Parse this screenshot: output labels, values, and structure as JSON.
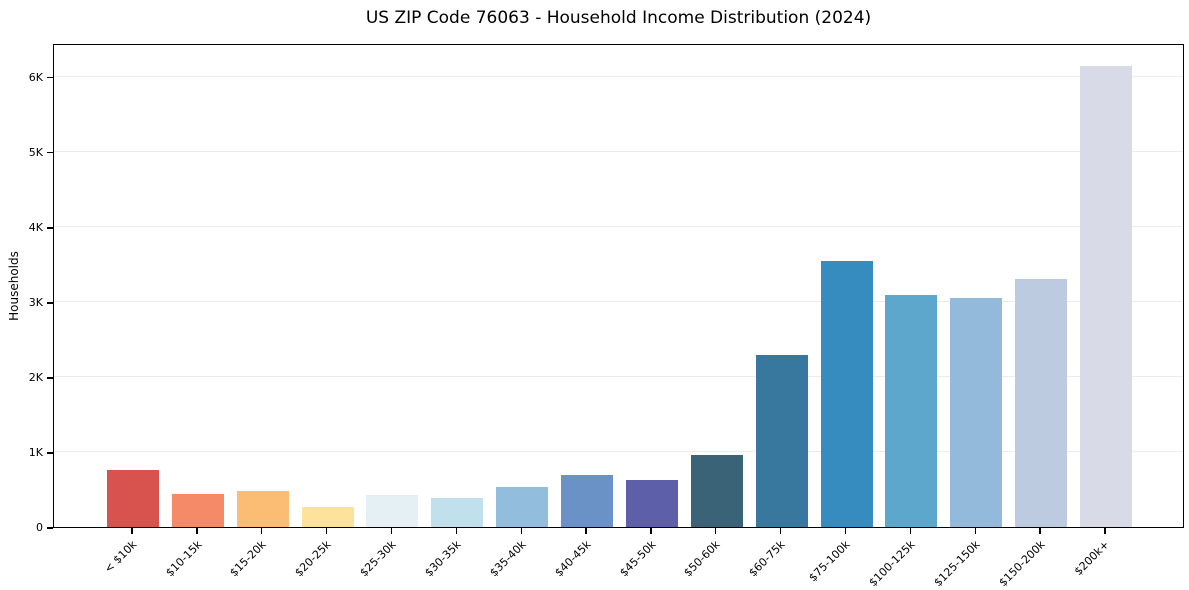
{
  "title": "US ZIP Code 76063 - Household Income Distribution (2024)",
  "chart_data": {
    "type": "bar",
    "title": "US ZIP Code 76063 - Household Income Distribution (2024)",
    "xlabel": "",
    "ylabel": "Households",
    "categories": [
      "< $10k",
      "$10-15k",
      "$15-20k",
      "$20-25k",
      "$25-30k",
      "$30-35k",
      "$35-40k",
      "$40-45k",
      "$45-50k",
      "$50-60k",
      "$60-75k",
      "$75-100k",
      "$100-125k",
      "$125-150k",
      "$150-200k",
      "$200k+"
    ],
    "values": [
      760,
      445,
      485,
      270,
      425,
      390,
      530,
      690,
      625,
      960,
      2290,
      3540,
      3090,
      3050,
      3310,
      6150
    ],
    "bar_colors": [
      "#d9534e",
      "#f58a68",
      "#fbbd74",
      "#fde29b",
      "#e4f0f4",
      "#bfe0ec",
      "#92bddd",
      "#6a92c6",
      "#5d5fa9",
      "#3a6377",
      "#38789f",
      "#378cbf",
      "#5da7cd",
      "#93badb",
      "#bccbdf",
      "#d8dae7"
    ],
    "yticks": {
      "values": [
        0,
        1000,
        2000,
        3000,
        4000,
        5000,
        6000
      ],
      "labels": [
        "0",
        "1K",
        "2K",
        "3K",
        "4K",
        "5K",
        "6K"
      ]
    },
    "ylim": [
      0,
      6450
    ],
    "grid": "horizontal",
    "gridline_color": "#ececec",
    "background": "#ffffff",
    "axis_color": "#000000",
    "legend": "none"
  }
}
